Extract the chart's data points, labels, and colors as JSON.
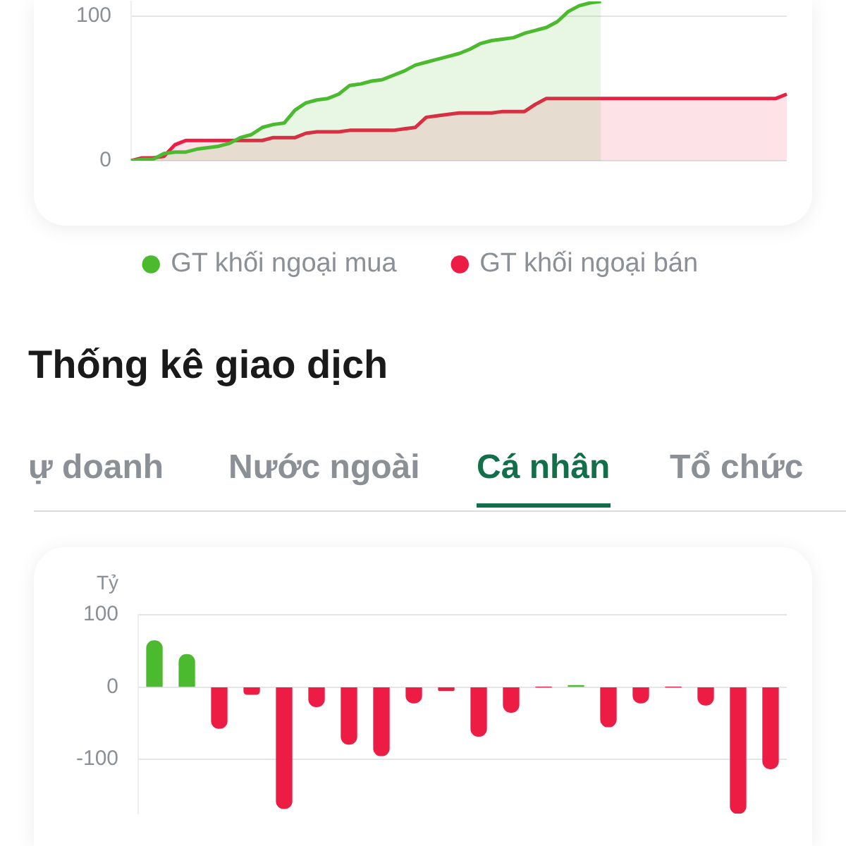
{
  "chart_data": [
    {
      "type": "area",
      "categories": [
        null,
        null,
        null,
        null,
        null,
        null,
        null,
        null,
        null,
        null,
        null,
        null,
        null,
        null,
        null,
        null,
        null,
        null,
        null,
        null,
        null,
        null,
        null,
        null,
        null,
        null,
        null,
        null,
        null,
        null,
        null,
        null,
        null,
        null,
        null,
        null,
        null,
        null,
        null,
        null,
        null,
        null,
        null,
        null,
        null,
        null,
        null,
        null,
        null,
        null,
        null,
        null,
        null,
        null,
        null,
        null,
        null,
        null,
        null,
        null,
        null
      ],
      "series": [
        {
          "name": "GT khối ngoại mua",
          "color": "#4cba2e",
          "values": [
            0,
            1,
            1,
            5,
            6,
            6,
            8,
            9,
            10,
            12,
            16,
            18,
            23,
            25,
            26,
            35,
            40,
            42,
            43,
            46,
            52,
            53,
            55,
            56,
            59,
            62,
            66,
            68,
            70,
            72,
            74,
            77,
            81,
            83,
            84,
            85,
            88,
            90,
            92,
            96,
            103,
            107,
            109,
            110,
            null,
            null,
            null,
            null,
            null,
            null,
            null,
            null,
            null,
            null,
            null,
            null,
            null,
            null,
            null,
            null,
            null
          ]
        },
        {
          "name": "GT khối ngoại bán",
          "color": "#ec1c45",
          "values": [
            0,
            2,
            2,
            3,
            11,
            14,
            14,
            14,
            14,
            14,
            14,
            14,
            14,
            16,
            16,
            16,
            19,
            20,
            20,
            20,
            21,
            21,
            21,
            21,
            21,
            22,
            23,
            30,
            31,
            32,
            33,
            33,
            33,
            33,
            34,
            34,
            34,
            39,
            43,
            43,
            43,
            43,
            43,
            43,
            43,
            43,
            43,
            43,
            43,
            43,
            43,
            43,
            43,
            43,
            43,
            43,
            43,
            43,
            43,
            43,
            46
          ]
        }
      ],
      "ylim": [
        0,
        110
      ],
      "yticks": [
        0,
        100
      ],
      "grid": "y",
      "legend": "bottom",
      "tick_labels": "y"
    },
    {
      "type": "bar",
      "title": "Thống kê giao dịch",
      "annotations": [
        "ự doanh",
        "Nước ngoài",
        "Cá nhân",
        "Tổ chức"
      ],
      "ylabel": "Tỷ",
      "categories": [
        null,
        null,
        null,
        null,
        null,
        null,
        null,
        null,
        null,
        null,
        null,
        null,
        null,
        null,
        null,
        null,
        null,
        null,
        null,
        null
      ],
      "values": [
        64,
        45,
        -57,
        -10,
        -168,
        -27,
        -79,
        -95,
        -22,
        -5,
        -68,
        -35,
        0,
        2,
        -55,
        -22,
        0,
        -25,
        -175,
        -113
      ],
      "colors": [
        "#4cba2e",
        "#4cba2e",
        "#ec1c45",
        "#ec1c45",
        "#ec1c45",
        "#ec1c45",
        "#ec1c45",
        "#ec1c45",
        "#ec1c45",
        "#ec1c45",
        "#ec1c45",
        "#ec1c45",
        "#ec1c45",
        "#4cba2e",
        "#ec1c45",
        "#ec1c45",
        "#ec1c45",
        "#ec1c45",
        "#ec1c45",
        "#ec1c45"
      ],
      "ylim": [
        -175,
        100
      ],
      "yticks": [
        -100,
        0,
        100
      ],
      "grid": "y",
      "tick_labels": "y"
    }
  ]
}
